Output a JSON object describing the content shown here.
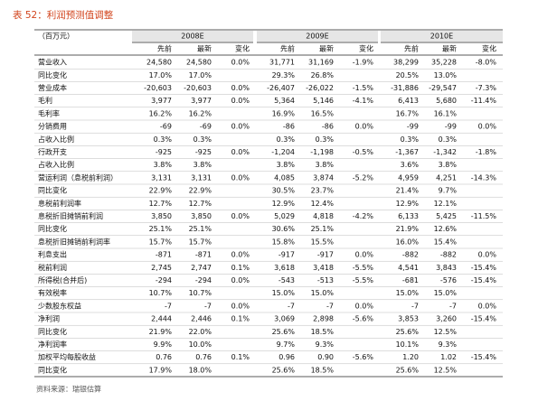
{
  "title": "表 52：利润预测值调整",
  "table": {
    "unit": "（百万元）",
    "groups": [
      "2008E",
      "2009E",
      "2010E"
    ],
    "columns": [
      "先前",
      "最新",
      "变化",
      "先前",
      "最新",
      "变化",
      "先前",
      "最新",
      "变化"
    ],
    "rows": [
      {
        "label": "营业收入",
        "cells": [
          "24,580",
          "24,580",
          "0.0%",
          "31,771",
          "31,169",
          "-1.9%",
          "38,299",
          "35,228",
          "-8.0%"
        ]
      },
      {
        "label": "同比变化",
        "cells": [
          "17.0%",
          "17.0%",
          null,
          "29.3%",
          "26.8%",
          null,
          "20.5%",
          "13.0%",
          null
        ]
      },
      {
        "label": "营业成本",
        "cells": [
          "-20,603",
          "-20,603",
          "0.0%",
          "-26,407",
          "-26,022",
          "-1.5%",
          "-31,886",
          "-29,547",
          "-7.3%"
        ]
      },
      {
        "label": "毛利",
        "cells": [
          "3,977",
          "3,977",
          "0.0%",
          "5,364",
          "5,146",
          "-4.1%",
          "6,413",
          "5,680",
          "-11.4%"
        ]
      },
      {
        "label": "毛利率",
        "cells": [
          "16.2%",
          "16.2%",
          null,
          "16.9%",
          "16.5%",
          null,
          "16.7%",
          "16.1%",
          null
        ]
      },
      {
        "label": "分销费用",
        "cells": [
          "-69",
          "-69",
          "0.0%",
          "-86",
          "-86",
          "0.0%",
          "-99",
          "-99",
          "0.0%"
        ]
      },
      {
        "label": "占收入比例",
        "cells": [
          "0.3%",
          "0.3%",
          null,
          "0.3%",
          "0.3%",
          null,
          "0.3%",
          "0.3%",
          null
        ]
      },
      {
        "label": "行政开支",
        "cells": [
          "-925",
          "-925",
          "0.0%",
          "-1,204",
          "-1,198",
          "-0.5%",
          "-1,367",
          "-1,342",
          "-1.8%"
        ]
      },
      {
        "label": "占收入比例",
        "cells": [
          "3.8%",
          "3.8%",
          null,
          "3.8%",
          "3.8%",
          null,
          "3.6%",
          "3.8%",
          null
        ]
      },
      {
        "label": "营运利润（息税前利润）",
        "cells": [
          "3,131",
          "3,131",
          "0.0%",
          "4,085",
          "3,874",
          "-5.2%",
          "4,959",
          "4,251",
          "-14.3%"
        ]
      },
      {
        "label": "同比变化",
        "cells": [
          "22.9%",
          "22.9%",
          null,
          "30.5%",
          "23.7%",
          null,
          "21.4%",
          "9.7%",
          null
        ]
      },
      {
        "label": "息税前利润率",
        "cells": [
          "12.7%",
          "12.7%",
          null,
          "12.9%",
          "12.4%",
          null,
          "12.9%",
          "12.1%",
          null
        ]
      },
      {
        "label": "息税折旧摊销前利润",
        "cells": [
          "3,850",
          "3,850",
          "0.0%",
          "5,029",
          "4,818",
          "-4.2%",
          "6,133",
          "5,425",
          "-11.5%"
        ]
      },
      {
        "label": "同比变化",
        "cells": [
          "25.1%",
          "25.1%",
          null,
          "30.6%",
          "25.1%",
          null,
          "21.9%",
          "12.6%",
          null
        ]
      },
      {
        "label": "息税折旧摊销前利润率",
        "cells": [
          "15.7%",
          "15.7%",
          null,
          "15.8%",
          "15.5%",
          null,
          "16.0%",
          "15.4%",
          null
        ]
      },
      {
        "label": "利息支出",
        "cells": [
          "-871",
          "-871",
          "0.0%",
          "-917",
          "-917",
          "0.0%",
          "-882",
          "-882",
          "0.0%"
        ]
      },
      {
        "label": "税前利润",
        "cells": [
          "2,745",
          "2,747",
          "0.1%",
          "3,618",
          "3,418",
          "-5.5%",
          "4,541",
          "3,843",
          "-15.4%"
        ]
      },
      {
        "label": "所得税(合并后)",
        "cells": [
          "-294",
          "-294",
          "0.0%",
          "-543",
          "-513",
          "-5.5%",
          "-681",
          "-576",
          "-15.4%"
        ]
      },
      {
        "label": "有效税率",
        "cells": [
          "10.7%",
          "10.7%",
          null,
          "15.0%",
          "15.0%",
          null,
          "15.0%",
          "15.0%",
          null
        ]
      },
      {
        "label": "少数股东权益",
        "cells": [
          "-7",
          "-7",
          "0.0%",
          "-7",
          "-7",
          "0.0%",
          "-7",
          "-7",
          "0.0%"
        ]
      },
      {
        "label": "净利润",
        "cells": [
          "2,444",
          "2,446",
          "0.1%",
          "3,069",
          "2,898",
          "-5.6%",
          "3,853",
          "3,260",
          "-15.4%"
        ]
      },
      {
        "label": "同比变化",
        "cells": [
          "21.9%",
          "22.0%",
          null,
          "25.6%",
          "18.5%",
          null,
          "25.6%",
          "12.5%",
          null
        ]
      },
      {
        "label": "净利润率",
        "cells": [
          "9.9%",
          "10.0%",
          null,
          "9.7%",
          "9.3%",
          null,
          "10.1%",
          "9.3%",
          null
        ]
      },
      {
        "label": "加权平均每股收益",
        "cells": [
          "0.76",
          "0.76",
          "0.1%",
          "0.96",
          "0.90",
          "-5.6%",
          "1.20",
          "1.02",
          "-15.4%"
        ]
      },
      {
        "label": "同比变化",
        "cells": [
          "17.9%",
          "18.0%",
          null,
          "25.6%",
          "18.5%",
          null,
          "25.6%",
          "12.5%",
          null
        ]
      }
    ]
  },
  "source": "资料来源：瑞银估算"
}
